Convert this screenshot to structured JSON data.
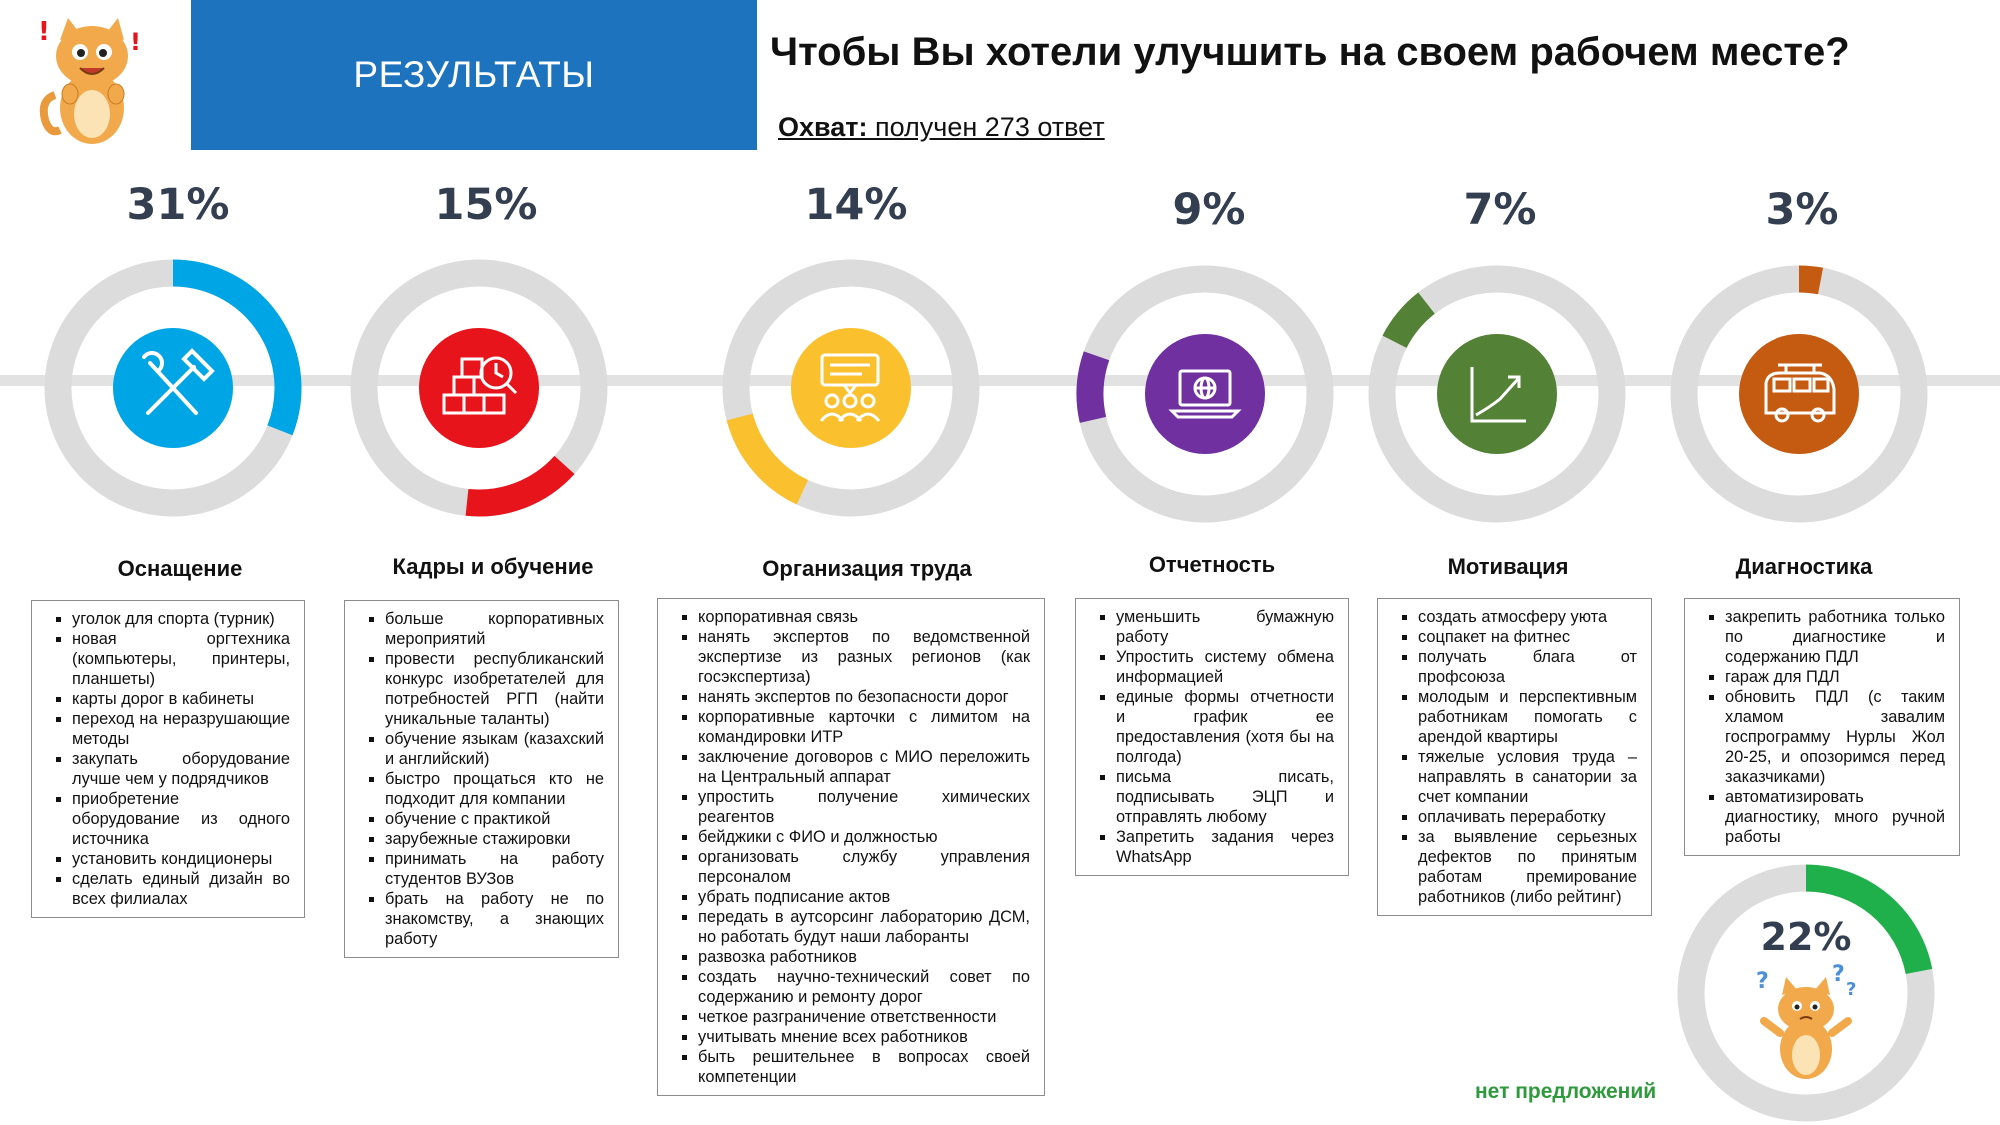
{
  "header": {
    "banner": "РЕЗУЛЬТАТЫ",
    "title": "Чтобы Вы хотели улучшить на своем рабочем месте?",
    "coverage_label": "Охват:",
    "coverage_text": " получен 273 ответ"
  },
  "chart_data": {
    "type": "donut",
    "categories": [
      "Оснащение",
      "Кадры и обучение",
      "Организация труда",
      "Отчетность",
      "Мотивация",
      "Диагностика",
      "нет предложений"
    ],
    "values": [
      31,
      15,
      14,
      9,
      7,
      3,
      22
    ],
    "labels": [
      "31%",
      "15%",
      "14%",
      "9%",
      "7%",
      "3%",
      "22%"
    ],
    "colors": [
      "#00a5e6",
      "#e8141b",
      "#fbc02d",
      "#7030a0",
      "#538135",
      "#c55a11",
      "#1fb04b"
    ],
    "icons": [
      "hammer-wrench-icon",
      "boxes-clock-icon",
      "team-presentation-icon",
      "laptop-globe-icon",
      "growth-chart-icon",
      "van-icon",
      "confused-cat-icon"
    ]
  },
  "categories": [
    {
      "title": "Оснащение",
      "items": [
        "уголок для спорта (турник)",
        "новая оргтехника (компьютеры, принтеры, планшеты)",
        "карты дорог в кабинеты",
        "переход на неразрушающие методы",
        "закупать оборудование лучше чем у подрядчиков",
        "приобретение оборудование из одного источника",
        "установить кондиционеры",
        "сделать единый дизайн во всех филиалах"
      ]
    },
    {
      "title": "Кадры и обучение",
      "items": [
        "больше корпоративных мероприятий",
        "провести республиканский конкурс изобретателей для потребностей РГП (найти уникальные таланты)",
        "обучение языкам (казахский и английский)",
        "быстро прощаться кто не подходит для компании",
        "обучение с практикой",
        "зарубежные стажировки",
        "принимать на работу студентов ВУЗов",
        "брать на работу не по знакомству, а знающих работу"
      ]
    },
    {
      "title": "Организация труда",
      "items": [
        "корпоративная связь",
        "нанять экспертов по ведомственной экспертизе из разных регионов (как госэкспертиза)",
        "нанять экспертов по безопасности дорог",
        "корпоративные карточки с лимитом на командировки ИТР",
        "заключение договоров с МИО переложить на Центральный аппарат",
        "упростить получение химических реагентов",
        "бейджики с ФИО и должностью",
        "организовать службу управления персоналом",
        "убрать подписание актов",
        "передать в аутсорсинг лабораторию ДСМ, но работать будут наши лаборанты",
        "развозка работников",
        "создать научно-технический совет по содержанию и ремонту дорог",
        "четкое разграничение ответственности",
        "учитывать мнение всех работников",
        "быть решительнее в вопросах своей компетенции"
      ]
    },
    {
      "title": "Отчетность",
      "items": [
        "уменьшить бумажную работу",
        "Упростить систему обмена информацией",
        "единые формы отчетности и график ее предоставления (хотя бы на полгода)",
        "письма писать, подписывать ЭЦП и отправлять любому",
        "Запретить задания через WhatsApp"
      ]
    },
    {
      "title": "Мотивация",
      "items": [
        "создать атмосферу уюта",
        "соцпакет на фитнес",
        "получать блага от профсоюза",
        "молодым и перспективным работникам помогать с арендой квартиры",
        "тяжелые условия труда – направлять в санатории за счет компании",
        "оплачивать переработку",
        "за выявление серьезных дефектов по принятым работам премирование работников (либо рейтинг)"
      ]
    },
    {
      "title": "Диагностика",
      "items": [
        "закрепить работника только по диагностике и содержанию ПДЛ",
        "гараж для ПДЛ",
        "обновить ПДЛ (с таким хламом завалим госпрограмму Нурлы Жол 20-25, и опозоримся перед заказчиками)",
        "автоматизировать диагностику, много ручной работы"
      ]
    }
  ],
  "no_suggestions": "нет предложений"
}
